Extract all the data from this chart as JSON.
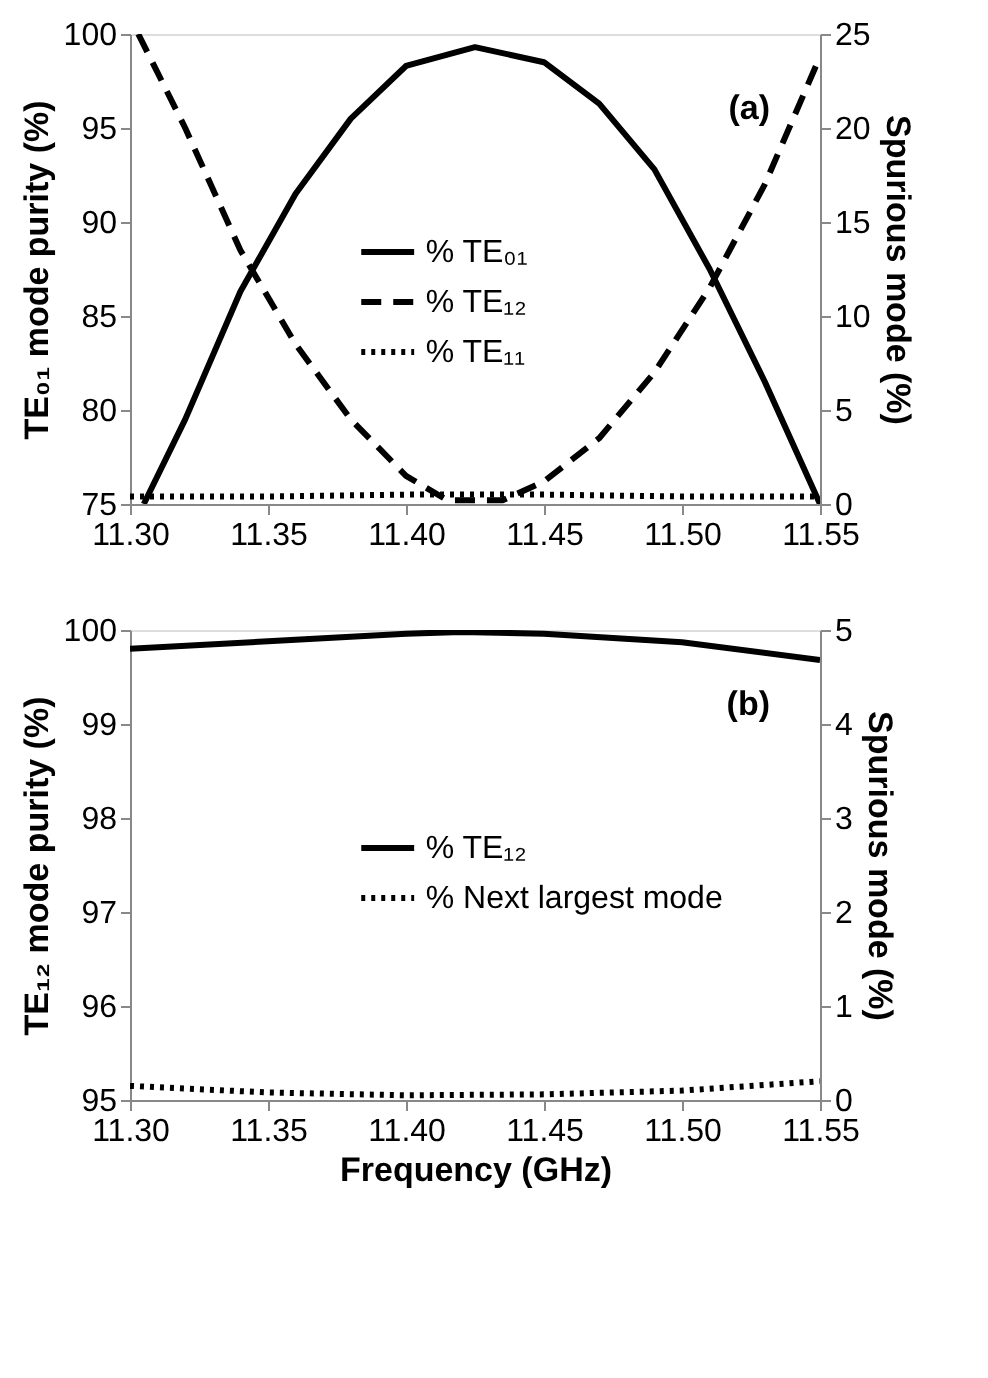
{
  "chart_data": [
    {
      "type": "line",
      "ylabel": "TE₀₁ mode purity (%)",
      "y2label": "Spurious mode (%)",
      "annotations": [
        "(a)"
      ],
      "legend": "center",
      "grid": false,
      "xlim": [
        11.3,
        11.55
      ],
      "xticks": [
        {
          "value": 11.3,
          "label": "11.30"
        },
        {
          "value": 11.35,
          "label": "11.35"
        },
        {
          "value": 11.4,
          "label": "11.40"
        },
        {
          "value": 11.45,
          "label": "11.45"
        },
        {
          "value": 11.5,
          "label": "11.50"
        },
        {
          "value": 11.55,
          "label": "11.55"
        }
      ],
      "ylim": [
        75,
        100
      ],
      "yticks": [
        75,
        80,
        85,
        90,
        95,
        100
      ],
      "y2lim": [
        0,
        25
      ],
      "y2ticks": [
        0,
        5,
        10,
        15,
        20,
        25
      ],
      "series": [
        {
          "name": "% TE₀₁",
          "color": "#000000",
          "line_style": "solid",
          "axis": "y",
          "x": [
            11.305,
            11.32,
            11.34,
            11.36,
            11.38,
            11.4,
            11.425,
            11.45,
            11.47,
            11.49,
            11.51,
            11.53,
            11.55
          ],
          "values": [
            75,
            79.5,
            86.3,
            91.5,
            95.5,
            98.3,
            99.3,
            98.5,
            96.3,
            92.8,
            87.5,
            81.5,
            75
          ]
        },
        {
          "name": "% TE₁₂",
          "color": "#000000",
          "line_style": "dashed",
          "axis": "y2",
          "x": [
            11.303,
            11.32,
            11.34,
            11.36,
            11.38,
            11.4,
            11.415,
            11.435,
            11.45,
            11.47,
            11.49,
            11.51,
            11.53,
            11.55
          ],
          "values": [
            25,
            20,
            13.5,
            8.5,
            4.5,
            1.5,
            0.2,
            0.2,
            1.2,
            3.5,
            7,
            11.5,
            17,
            23.8
          ]
        },
        {
          "name": "% TE₁₁",
          "color": "#000000",
          "line_style": "dotted",
          "axis": "y2",
          "x": [
            11.3,
            11.35,
            11.4,
            11.45,
            11.5,
            11.55
          ],
          "values": [
            0.4,
            0.4,
            0.5,
            0.5,
            0.4,
            0.4
          ]
        }
      ]
    },
    {
      "type": "line",
      "xlabel": "Frequency (GHz)",
      "ylabel": "TE₁₂ mode purity (%)",
      "y2label": "Spurious mode (%)",
      "annotations": [
        "(b)"
      ],
      "legend": "center",
      "grid": false,
      "xlim": [
        11.3,
        11.55
      ],
      "xticks": [
        {
          "value": 11.3,
          "label": "11.30"
        },
        {
          "value": 11.35,
          "label": "11.35"
        },
        {
          "value": 11.4,
          "label": "11.40"
        },
        {
          "value": 11.45,
          "label": "11.45"
        },
        {
          "value": 11.5,
          "label": "11.50"
        },
        {
          "value": 11.55,
          "label": "11.55"
        }
      ],
      "ylim": [
        95,
        100
      ],
      "yticks": [
        95,
        96,
        97,
        98,
        99,
        100
      ],
      "y2lim": [
        0,
        5
      ],
      "y2ticks": [
        0,
        1,
        2,
        3,
        4,
        5
      ],
      "series": [
        {
          "name": "% TE₁₂",
          "color": "#000000",
          "line_style": "solid",
          "axis": "y",
          "x": [
            11.3,
            11.35,
            11.4,
            11.42,
            11.45,
            11.5,
            11.55
          ],
          "values": [
            99.8,
            99.88,
            99.96,
            99.98,
            99.96,
            99.87,
            99.68
          ]
        },
        {
          "name": "% Next largest mode",
          "color": "#000000",
          "line_style": "dotted",
          "axis": "y2",
          "x": [
            11.3,
            11.35,
            11.4,
            11.45,
            11.5,
            11.55
          ],
          "values": [
            0.15,
            0.08,
            0.05,
            0.06,
            0.1,
            0.2
          ]
        }
      ]
    }
  ]
}
